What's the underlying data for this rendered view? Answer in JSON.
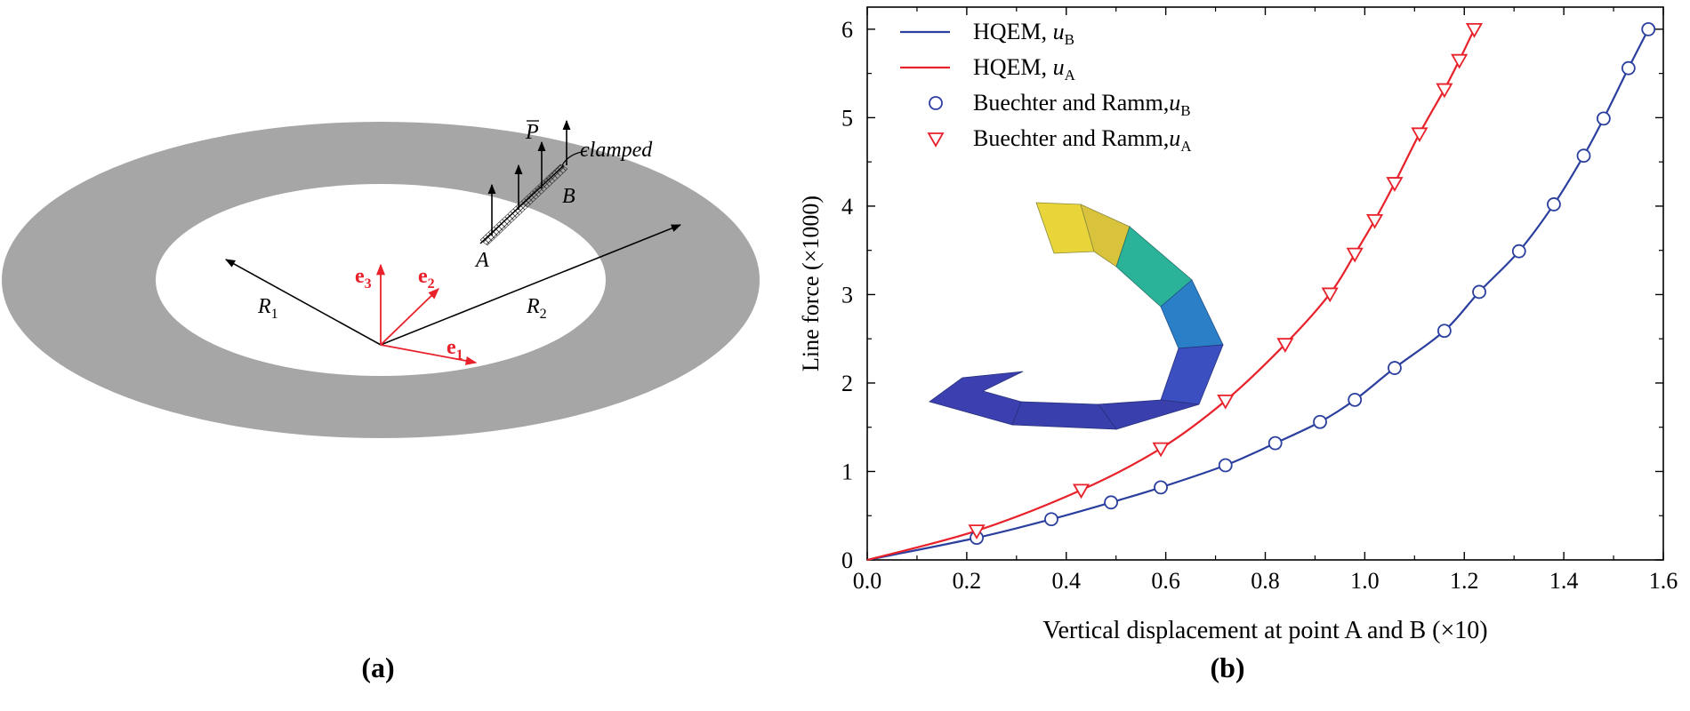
{
  "panel_a": {
    "caption": "(a)",
    "labels": {
      "P": "P",
      "clamped": "clamped",
      "A": "A",
      "B": "B",
      "R1_main": "R",
      "R1_sub": "1",
      "R2_main": "R",
      "R2_sub": "2",
      "e_main": "e",
      "e1_sub": "1",
      "e2_sub": "2",
      "e3_sub": "3"
    },
    "colors": {
      "ring": "#a6a6a6",
      "vectors": "#e8212a",
      "arrows": "#000000"
    }
  },
  "panel_b": {
    "caption": "(b)",
    "colors": {
      "blue": "#2b3f9e",
      "red": "#e8212a"
    }
  },
  "chart_data": {
    "type": "line",
    "xlabel": "Vertical displacement at point A and B (×10)",
    "ylabel": "Line force (×1000)",
    "xlim": [
      0,
      1.6
    ],
    "ylim": [
      0,
      6.25
    ],
    "x_ticks": [
      "0.0",
      "0.2",
      "0.4",
      "0.6",
      "0.8",
      "1.0",
      "1.2",
      "1.4",
      "1.6"
    ],
    "y_ticks": [
      "0",
      "1",
      "2",
      "3",
      "4",
      "5",
      "6"
    ],
    "legend_position": "top-left",
    "series": [
      {
        "key": "hqem_b",
        "name": "HQEM, ",
        "var": "u",
        "sub": "B",
        "style": "line",
        "color": "#2b3f9e",
        "points": [
          [
            0,
            0
          ],
          [
            0.22,
            0.25
          ],
          [
            0.37,
            0.46
          ],
          [
            0.49,
            0.65
          ],
          [
            0.59,
            0.82
          ],
          [
            0.72,
            1.07
          ],
          [
            0.82,
            1.32
          ],
          [
            0.91,
            1.56
          ],
          [
            0.98,
            1.81
          ],
          [
            1.06,
            2.17
          ],
          [
            1.16,
            2.59
          ],
          [
            1.23,
            3.03
          ],
          [
            1.31,
            3.49
          ],
          [
            1.38,
            4.02
          ],
          [
            1.44,
            4.57
          ],
          [
            1.48,
            4.99
          ],
          [
            1.53,
            5.56
          ],
          [
            1.57,
            6.0
          ]
        ]
      },
      {
        "key": "hqem_a",
        "name": "HQEM, ",
        "var": "u",
        "sub": "A",
        "style": "line",
        "color": "#e8212a",
        "points": [
          [
            0,
            0
          ],
          [
            0.22,
            0.33
          ],
          [
            0.43,
            0.79
          ],
          [
            0.59,
            1.26
          ],
          [
            0.72,
            1.8
          ],
          [
            0.84,
            2.44
          ],
          [
            0.93,
            3.01
          ],
          [
            0.98,
            3.46
          ],
          [
            1.02,
            3.84
          ],
          [
            1.06,
            4.26
          ],
          [
            1.11,
            4.82
          ],
          [
            1.16,
            5.32
          ],
          [
            1.19,
            5.65
          ],
          [
            1.22,
            6.0
          ]
        ]
      },
      {
        "key": "br_b",
        "name": "Buechter and Ramm,",
        "var": "u",
        "sub": "B",
        "style": "circle",
        "color": "#2b3f9e",
        "points": [
          [
            0.22,
            0.25
          ],
          [
            0.37,
            0.46
          ],
          [
            0.49,
            0.65
          ],
          [
            0.59,
            0.82
          ],
          [
            0.72,
            1.07
          ],
          [
            0.82,
            1.32
          ],
          [
            0.91,
            1.56
          ],
          [
            0.98,
            1.81
          ],
          [
            1.06,
            2.17
          ],
          [
            1.16,
            2.59
          ],
          [
            1.23,
            3.03
          ],
          [
            1.31,
            3.49
          ],
          [
            1.38,
            4.02
          ],
          [
            1.44,
            4.57
          ],
          [
            1.48,
            4.99
          ],
          [
            1.53,
            5.56
          ],
          [
            1.57,
            6.0
          ]
        ]
      },
      {
        "key": "br_a",
        "name": "Buechter and Ramm,",
        "var": "u",
        "sub": "A",
        "style": "triangle",
        "color": "#e8212a",
        "points": [
          [
            0.22,
            0.33
          ],
          [
            0.43,
            0.79
          ],
          [
            0.59,
            1.26
          ],
          [
            0.72,
            1.8
          ],
          [
            0.84,
            2.44
          ],
          [
            0.93,
            3.01
          ],
          [
            0.98,
            3.46
          ],
          [
            1.02,
            3.84
          ],
          [
            1.06,
            4.26
          ],
          [
            1.11,
            4.82
          ],
          [
            1.16,
            5.32
          ],
          [
            1.19,
            5.65
          ],
          [
            1.22,
            6.0
          ]
        ]
      }
    ]
  }
}
